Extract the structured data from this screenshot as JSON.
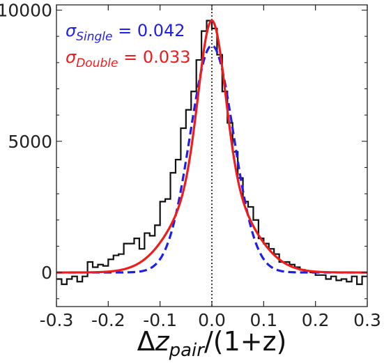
{
  "chart_data": {
    "type": "line",
    "xlim": [
      -0.3,
      0.3
    ],
    "ylim": [
      -1300,
      10200
    ],
    "x_ticks": [
      -0.3,
      -0.2,
      -0.1,
      0.0,
      0.1,
      0.2,
      0.3
    ],
    "x_tick_labels": [
      "-0.3",
      "-0.2",
      "-0.1",
      "0.0",
      "0.1",
      "0.2",
      "0.3"
    ],
    "y_ticks": [
      0,
      5000,
      10000
    ],
    "y_tick_labels": [
      "0",
      "5000",
      "10000"
    ],
    "xlabel": {
      "delta": "Δ",
      "var": "z",
      "sub": "pair",
      "rest": "/(1+z)"
    },
    "vline_x": 0.0,
    "grid": false,
    "histogram": {
      "bin_edges": [
        -0.3,
        -0.29,
        -0.28,
        -0.27,
        -0.26,
        -0.25,
        -0.24,
        -0.23,
        -0.22,
        -0.21,
        -0.2,
        -0.19,
        -0.18,
        -0.17,
        -0.16,
        -0.15,
        -0.14,
        -0.13,
        -0.12,
        -0.11,
        -0.1,
        -0.09,
        -0.08,
        -0.07,
        -0.06,
        -0.05,
        -0.04,
        -0.03,
        -0.02,
        -0.01,
        0.0,
        0.01,
        0.02,
        0.03,
        0.04,
        0.05,
        0.06,
        0.07,
        0.08,
        0.09,
        0.1,
        0.11,
        0.12,
        0.13,
        0.14,
        0.15,
        0.16,
        0.17,
        0.18,
        0.19,
        0.2,
        0.21,
        0.22,
        0.23,
        0.24,
        0.25,
        0.26,
        0.27,
        0.28,
        0.29,
        0.3
      ],
      "counts": [
        -250,
        -450,
        -250,
        -150,
        -350,
        -150,
        400,
        200,
        300,
        250,
        500,
        650,
        700,
        1100,
        1100,
        1300,
        900,
        1500,
        1400,
        1800,
        2700,
        2800,
        3800,
        4300,
        5500,
        6200,
        6900,
        8100,
        9200,
        9600,
        9300,
        8300,
        6900,
        5700,
        4600,
        3600,
        2700,
        2500,
        2000,
        1300,
        1100,
        900,
        700,
        400,
        400,
        300,
        200,
        100,
        50,
        0,
        -100,
        -100,
        -250,
        -150,
        -300,
        -250,
        -350,
        -150,
        -450,
        -150
      ]
    },
    "series": [
      {
        "name": "σSingle = 0.042",
        "label_main": "σ",
        "label_sub": "Single",
        "label_value": " = 0.042",
        "color": "#1f1fe6",
        "style": "dashed",
        "model": {
          "form": "gaussian",
          "amplitude": 8650,
          "sigma": 0.042
        }
      },
      {
        "name": "σDouble = 0.033",
        "label_main": "σ",
        "label_sub": "Double",
        "label_value": " = 0.033",
        "color": "#ee1c1c",
        "style": "solid",
        "model": {
          "form": "double-gaussian",
          "a1": 5900,
          "s1": 0.025,
          "a2": 3700,
          "s2": 0.065
        }
      }
    ]
  }
}
